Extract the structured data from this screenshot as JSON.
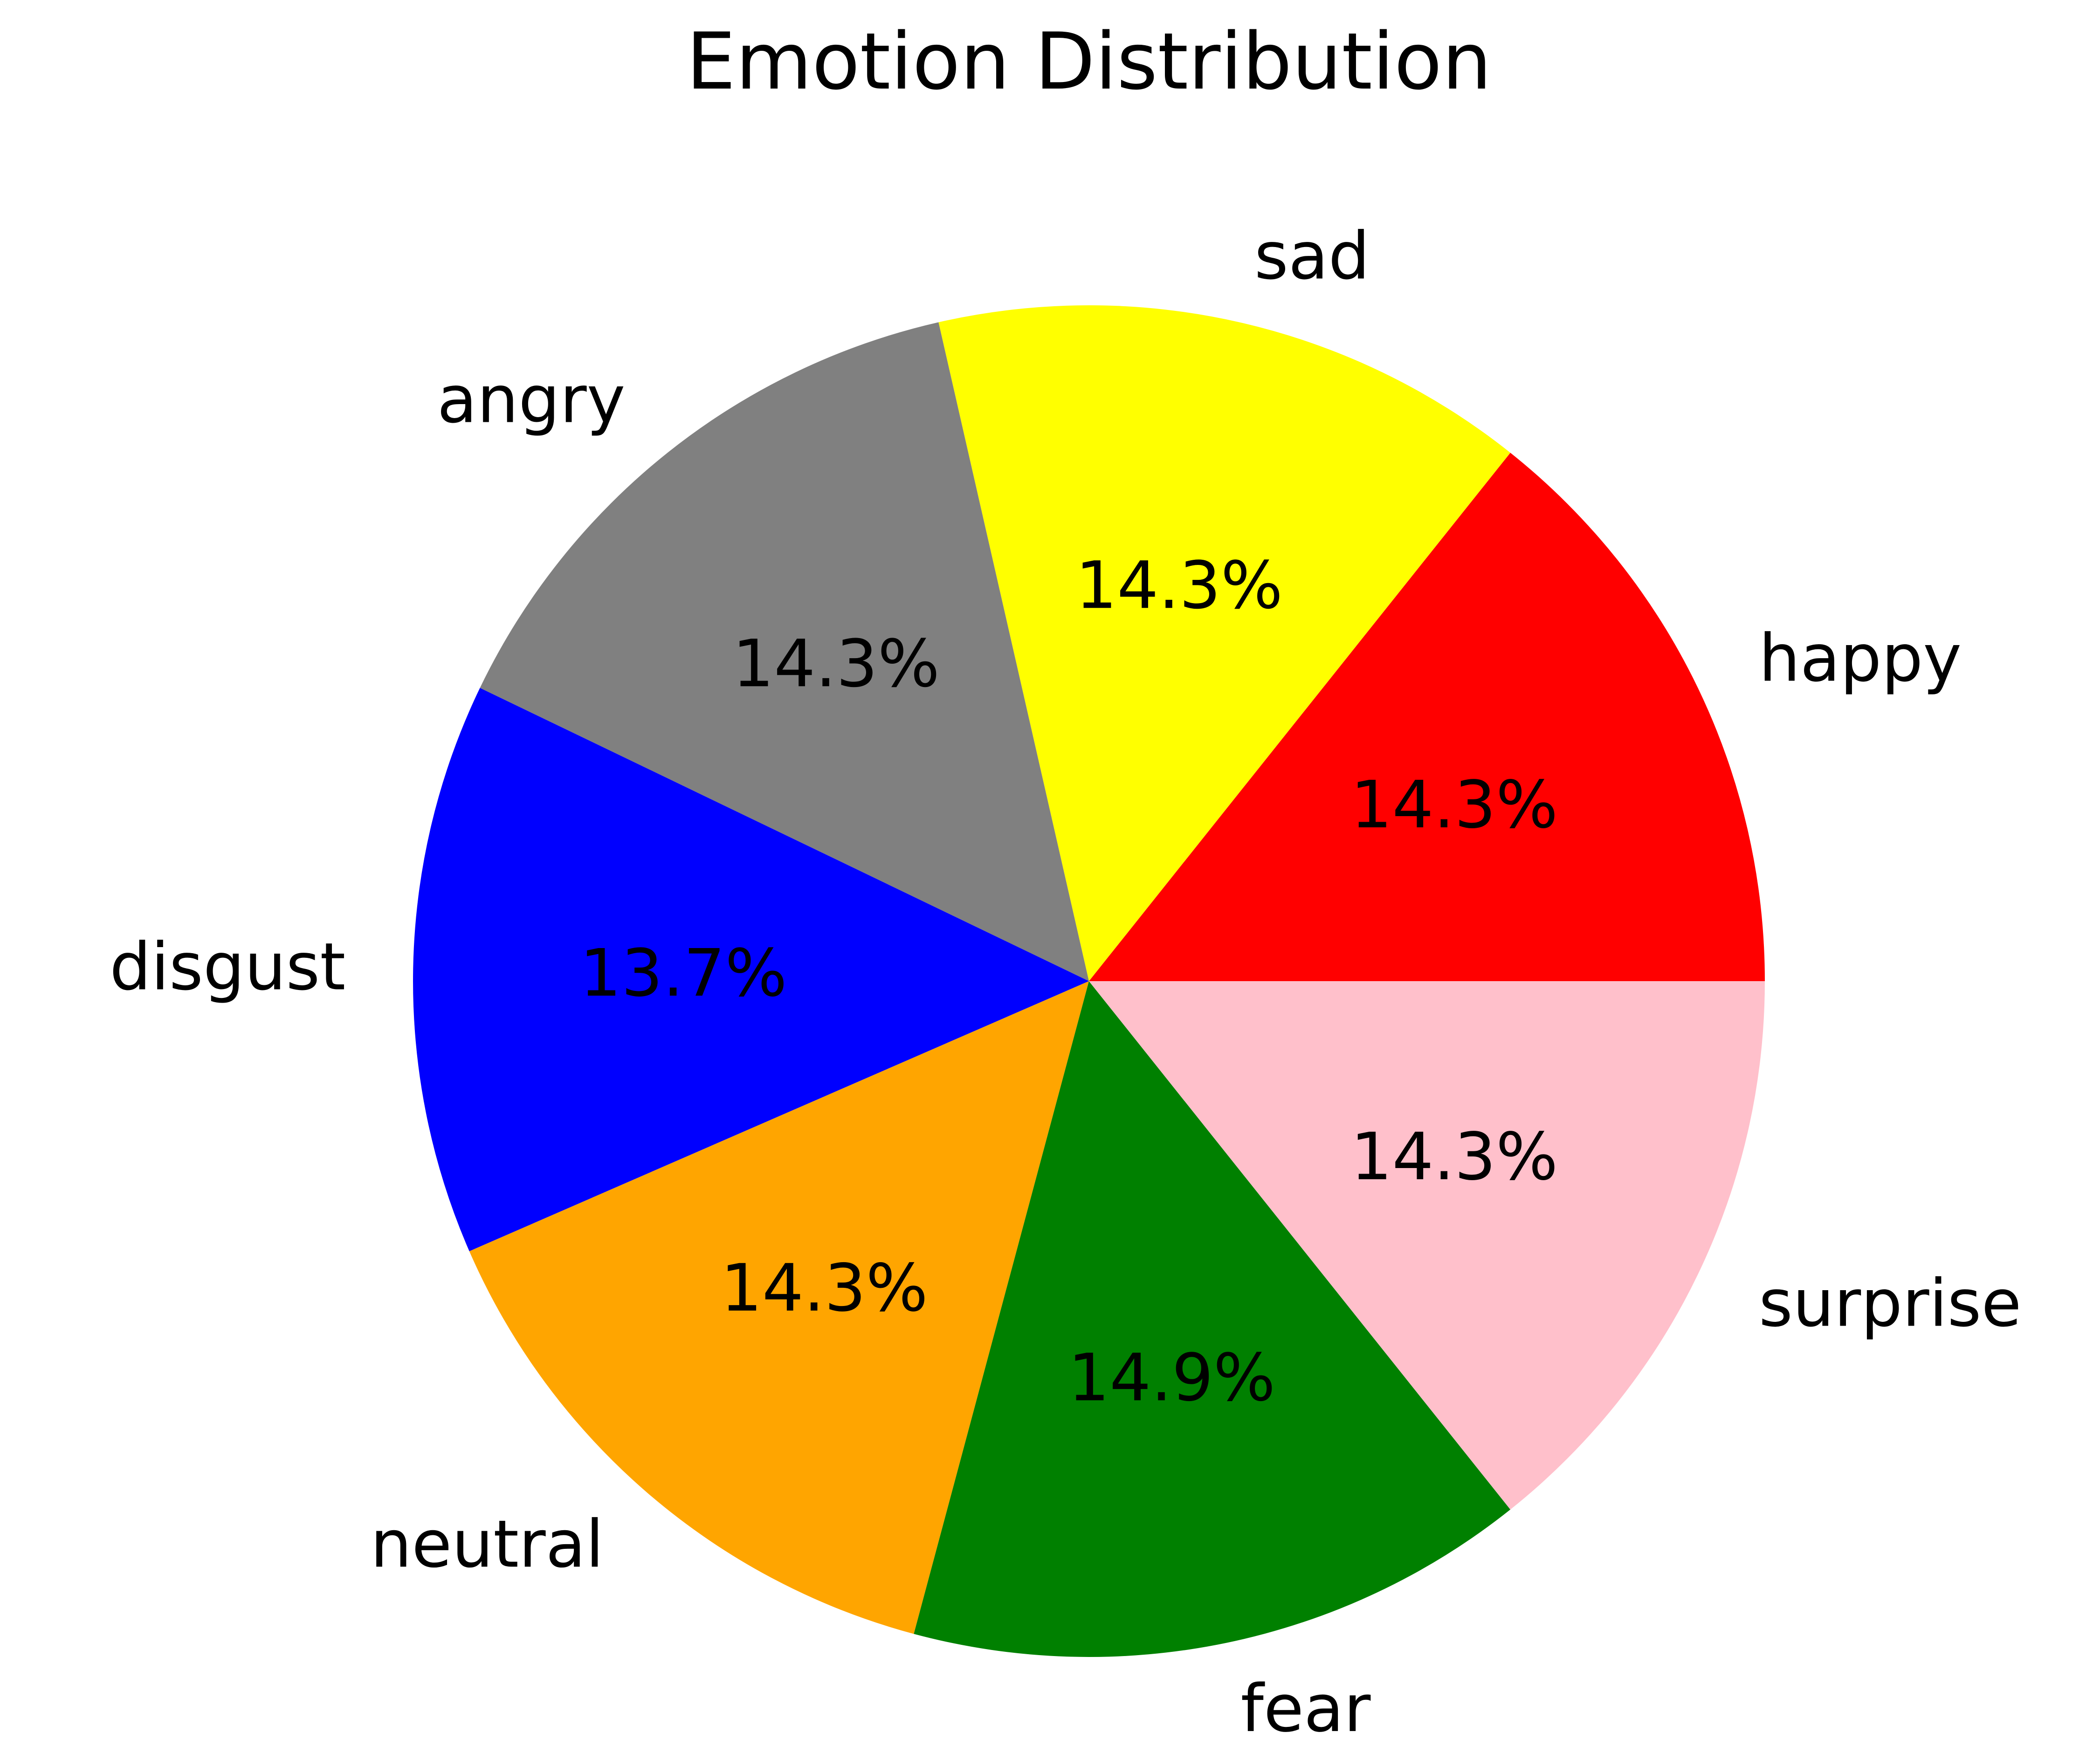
{
  "chart_data": {
    "type": "pie",
    "title": "Emotion Distribution",
    "categories": [
      "happy",
      "sad",
      "angry",
      "disgust",
      "neutral",
      "fear",
      "surprise"
    ],
    "values": [
      14.3,
      14.3,
      14.3,
      13.7,
      14.3,
      14.9,
      14.3
    ],
    "value_labels": [
      "14.3%",
      "14.3%",
      "14.3%",
      "13.7%",
      "14.3%",
      "14.9%",
      "14.3%"
    ],
    "colors": [
      "#ff0000",
      "#ffff00",
      "#808080",
      "#0000ff",
      "#ffa500",
      "#008000",
      "#ffc0cb"
    ],
    "start_angle_deg": 0,
    "direction": "counterclockwise"
  }
}
